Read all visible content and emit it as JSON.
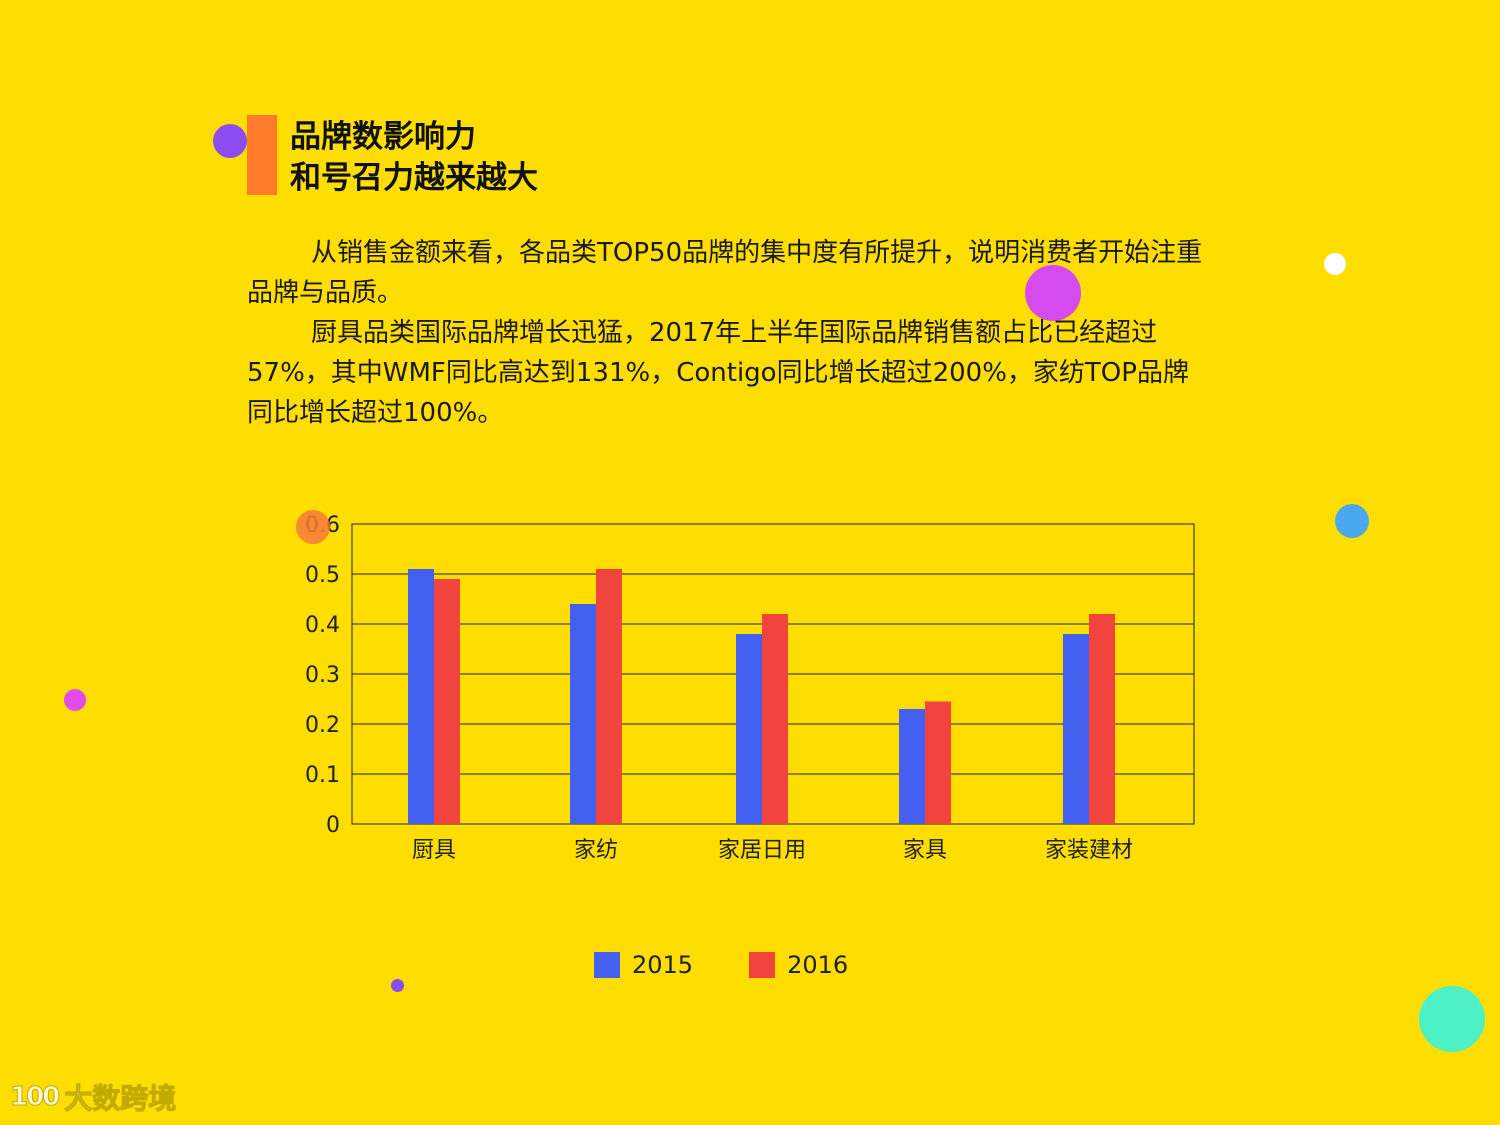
{
  "title": {
    "line1": "品牌数影响力",
    "line2": "和号召力越来越大"
  },
  "body": {
    "paragraph1": "从销售金额来看，各品类TOP50品牌的集中度有所提升，说明消费者开始注重品牌与品质。",
    "paragraph2": "厨具品类国际品牌增长迅猛，2017年上半年国际品牌销售额占比已经超过57%，其中WMF同比高达到131%，Contigo同比增长超过200%，家纺TOP品牌同比增长超过100%。"
  },
  "colors": {
    "background": "#FEDD00",
    "accent_bar": "#FF7A2A",
    "series_2015": "#4360F0",
    "series_2016": "#F2443F"
  },
  "chart_data": {
    "type": "bar",
    "categories": [
      "厨具",
      "家纺",
      "家居日用",
      "家具",
      "家装建材"
    ],
    "series": [
      {
        "name": "2015",
        "values": [
          0.51,
          0.44,
          0.38,
          0.23,
          0.38
        ],
        "color": "#4360F0"
      },
      {
        "name": "2016",
        "values": [
          0.49,
          0.51,
          0.42,
          0.245,
          0.42
        ],
        "color": "#F2443F"
      }
    ],
    "ylim": [
      0,
      0.6
    ],
    "yticks": [
      "0",
      "0.1",
      "0.2",
      "0.3",
      "0.4",
      "0.5",
      "0.6"
    ],
    "grid": true,
    "legend": "bottom"
  },
  "logo": {
    "mark": "100",
    "text": "大数跨境"
  }
}
